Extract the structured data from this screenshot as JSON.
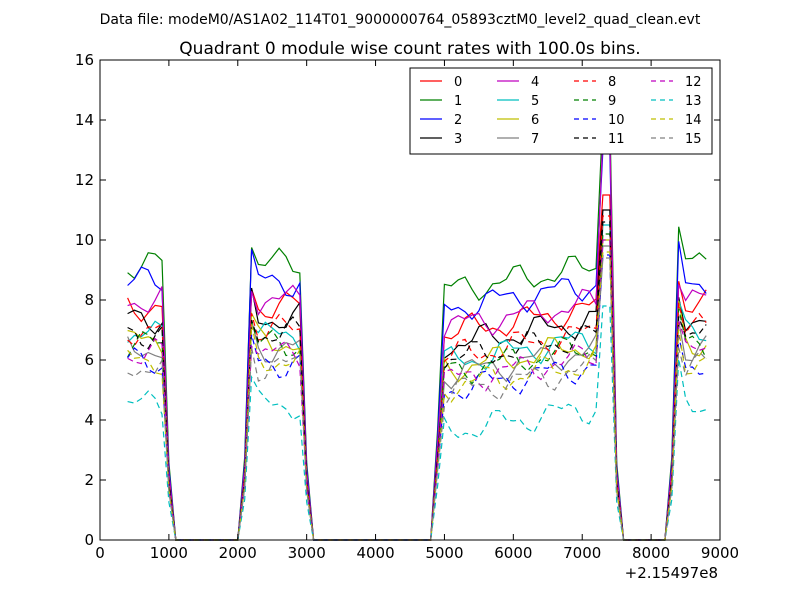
{
  "suptitle": "Data file: modeM0/AS1A02_114T01_9000000764_05893cztM0_level2_quad_clean.evt",
  "chart_data": {
    "type": "line",
    "title": "Quadrant 0 module wise count rates with 100.0s bins.",
    "xlabel": "",
    "ylabel": "",
    "x_offset_label": "+2.15497e8",
    "xlim": [
      0,
      9000
    ],
    "ylim": [
      0,
      16
    ],
    "xticks": [
      "0",
      "1000",
      "2000",
      "3000",
      "4000",
      "5000",
      "6000",
      "7000",
      "8000",
      "9000"
    ],
    "yticks": [
      "0",
      "2",
      "4",
      "6",
      "8",
      "10",
      "12",
      "14",
      "16"
    ],
    "legend_position": "top-right",
    "x": [
      400,
      500,
      600,
      700,
      800,
      900,
      1000,
      1100,
      1200,
      1300,
      1400,
      1500,
      1600,
      1700,
      1800,
      1900,
      2000,
      2100,
      2200,
      2300,
      2400,
      2500,
      2600,
      2700,
      2800,
      2900,
      3000,
      3100,
      3200,
      3300,
      3400,
      3500,
      3600,
      3700,
      3800,
      3900,
      4000,
      4100,
      4200,
      4300,
      4400,
      4500,
      4600,
      4700,
      4800,
      4900,
      5000,
      5100,
      5200,
      5300,
      5400,
      5500,
      5600,
      5700,
      5800,
      5900,
      6000,
      6100,
      6200,
      6300,
      6400,
      6500,
      6600,
      6700,
      6800,
      6900,
      7000,
      7100,
      7200,
      7300,
      7400,
      7500,
      7600,
      7700,
      7800,
      7900,
      8000,
      8100,
      8200,
      8300,
      8400,
      8500,
      8600,
      8700,
      8800
    ],
    "series": [
      {
        "name": "0",
        "color": "#ff0000",
        "dash": "solid",
        "active": 7.8,
        "peak": 11.5
      },
      {
        "name": "1",
        "color": "#008000",
        "dash": "solid",
        "active": 9.2,
        "peak": 14.2
      },
      {
        "name": "2",
        "color": "#0000ff",
        "dash": "solid",
        "active": 8.6,
        "peak": 13.0
      },
      {
        "name": "3",
        "color": "#000000",
        "dash": "solid",
        "active": 7.4,
        "peak": 11.0
      },
      {
        "name": "4",
        "color": "#bf00bf",
        "dash": "solid",
        "active": 8.0,
        "peak": 13.5
      },
      {
        "name": "5",
        "color": "#00bfbf",
        "dash": "solid",
        "active": 6.8,
        "peak": 10.5
      },
      {
        "name": "6",
        "color": "#bfbf00",
        "dash": "solid",
        "active": 6.6,
        "peak": 10.0
      },
      {
        "name": "7",
        "color": "#808080",
        "dash": "solid",
        "active": 6.4,
        "peak": 9.8
      },
      {
        "name": "8",
        "color": "#ff0000",
        "dash": "dashed",
        "active": 7.0,
        "peak": 10.8
      },
      {
        "name": "9",
        "color": "#008000",
        "dash": "dashed",
        "active": 6.5,
        "peak": 10.2
      },
      {
        "name": "10",
        "color": "#0000ff",
        "dash": "dashed",
        "active": 5.9,
        "peak": 9.5
      },
      {
        "name": "11",
        "color": "#000000",
        "dash": "dashed",
        "active": 6.9,
        "peak": 10.6
      },
      {
        "name": "12",
        "color": "#bf00bf",
        "dash": "dashed",
        "active": 6.2,
        "peak": 10.0
      },
      {
        "name": "13",
        "color": "#00bfbf",
        "dash": "dashed",
        "active": 4.5,
        "peak": 7.8
      },
      {
        "name": "14",
        "color": "#bfbf00",
        "dash": "dashed",
        "active": 6.0,
        "peak": 9.6
      },
      {
        "name": "15",
        "color": "#808080",
        "dash": "dashed",
        "active": 5.8,
        "peak": 9.4
      }
    ],
    "active_segments": [
      [
        400,
        900
      ],
      [
        2200,
        2900
      ],
      [
        5000,
        7400
      ],
      [
        8400,
        8800
      ]
    ]
  }
}
